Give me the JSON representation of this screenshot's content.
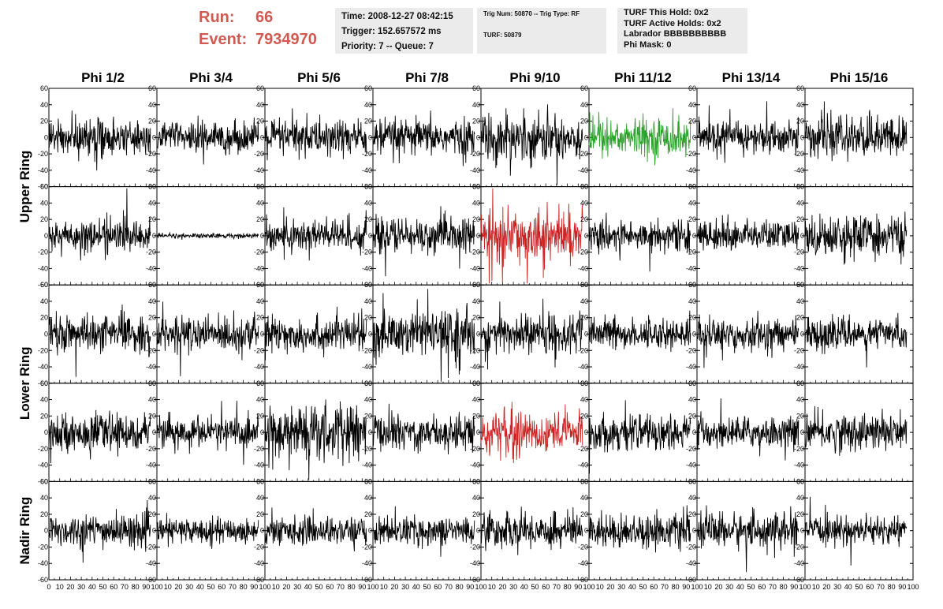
{
  "header": {
    "run_label": "Run:",
    "run_value": "66",
    "event_label": "Event:",
    "event_value": "7934970"
  },
  "info_panel": {
    "time": "Time: 2008-12-27 08:42:15",
    "trigger": "Trigger: 152.657572 ms",
    "priority": "Priority: 7 -- Queue: 7"
  },
  "trig_panel": {
    "trig": "Trig Num: 50870 -- Trig Type: RF",
    "turf": "TURF: 50879"
  },
  "turf_panel": {
    "this_hold": "TURF This Hold: 0x2",
    "active_holds": "TURF Active Holds: 0x2",
    "labrador": "Labrador BBBBBBBBBB",
    "phi_mask": "Phi Mask: 0"
  },
  "colors": {
    "default_trace": "#000000",
    "triggered_trace": "#2ca02c",
    "hit_trace": "#cc2222",
    "header_accent": "#d05a52",
    "panel_bg": "#ebebeb"
  },
  "chart_data": {
    "type": "line",
    "columns": [
      "Phi 1/2",
      "Phi 3/4",
      "Phi 5/6",
      "Phi 7/8",
      "Phi 9/10",
      "Phi 11/12",
      "Phi 13/14",
      "Phi 15/16"
    ],
    "rows": [
      "Upper Ring",
      "Lower Ring",
      "Nadir Ring"
    ],
    "channel_rows": 5,
    "ylim": [
      -60,
      60
    ],
    "yticks": [
      -60,
      -40,
      -20,
      0,
      20,
      40,
      60
    ],
    "xlim": [
      0,
      100
    ],
    "xticks": [
      0,
      10,
      20,
      30,
      40,
      50,
      60,
      70,
      80,
      90,
      100
    ],
    "samples_per_trace": 260,
    "amplitudes": [
      [
        14,
        12,
        15,
        14,
        19,
        15,
        13,
        16
      ],
      [
        13,
        2,
        14,
        14,
        20,
        12,
        12,
        16
      ],
      [
        14,
        14,
        14,
        18,
        16,
        12,
        13,
        12
      ],
      [
        14,
        12,
        22,
        14,
        17,
        14,
        12,
        15
      ],
      [
        13,
        10,
        11,
        11,
        14,
        13,
        14,
        11
      ]
    ],
    "trace_colors": [
      [
        "k",
        "k",
        "k",
        "k",
        "k",
        "green",
        "k",
        "k"
      ],
      [
        "k",
        "k",
        "k",
        "k",
        "red",
        "k",
        "k",
        "k"
      ],
      [
        "k",
        "k",
        "k",
        "k",
        "k",
        "k",
        "k",
        "k"
      ],
      [
        "k",
        "k",
        "k",
        "k",
        "red",
        "k",
        "k",
        "k"
      ],
      [
        "k",
        "k",
        "k",
        "k",
        "k",
        "k",
        "k",
        "k"
      ]
    ]
  }
}
